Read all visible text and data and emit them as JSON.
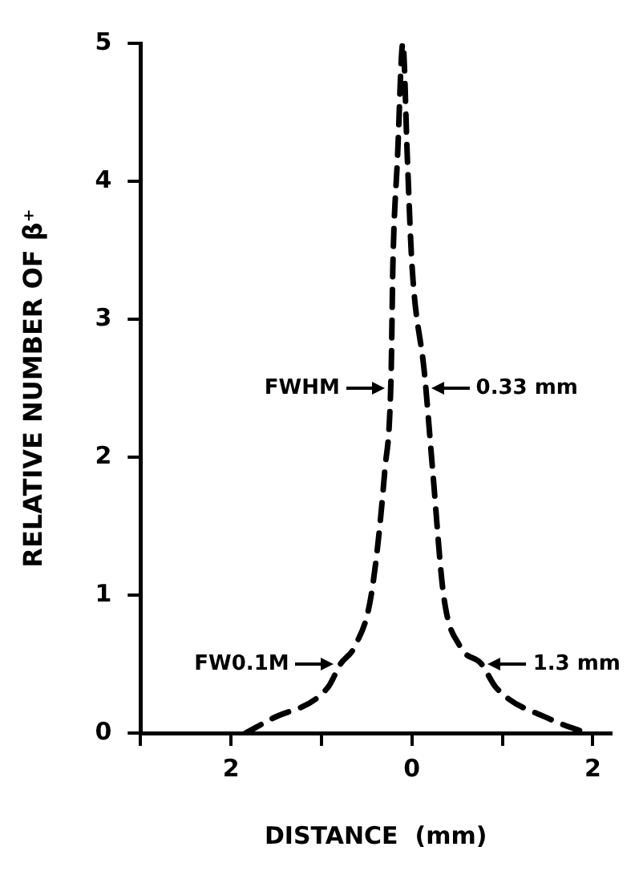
{
  "chart_data": {
    "type": "line",
    "xlabel": "DISTANCE  (mm)",
    "ylabel": "RELATIVE NUMBER OF β⁺",
    "x": [
      -1.84,
      -1.56,
      -0.93,
      -0.79,
      -0.63,
      -0.45,
      -0.3,
      -0.23,
      -0.21,
      -0.16,
      -0.1,
      -0.05,
      0,
      0.14,
      0.23,
      0.35,
      0.53,
      0.77,
      0.93,
      1.53,
      1.93
    ],
    "series": [
      {
        "color": "#000000",
        "values": [
          0,
          0.1,
          0.33,
          0.5,
          0.63,
          1.0,
          1.9,
          2.6,
          3.4,
          4.16,
          5,
          4.16,
          3.4,
          2.6,
          1.9,
          1.0,
          0.63,
          0.5,
          0.33,
          0.1,
          0
        ]
      }
    ],
    "xlim": [
      -3,
      2.2
    ],
    "ylim": [
      0,
      5
    ],
    "xticks": [
      {
        "value": -3,
        "label": null
      },
      {
        "value": -2,
        "label": "2"
      },
      {
        "value": -1,
        "label": null
      },
      0,
      {
        "value": 1,
        "label": null
      },
      2
    ],
    "yticks": [
      0,
      1,
      2,
      3,
      4,
      5
    ],
    "annotations": [
      {
        "text": "FWHM",
        "x": -0.23,
        "y": 2.5
      },
      {
        "text": "0.33 mm",
        "x": 0.14,
        "y": 2.5
      },
      {
        "text": "FW0.1M",
        "x": -0.79,
        "y": 0.5
      },
      {
        "text": "1.3 mm",
        "x": 0.77,
        "y": 0.5
      }
    ],
    "grid": false,
    "legend": false,
    "marker": "none",
    "line_style": "dashed"
  }
}
